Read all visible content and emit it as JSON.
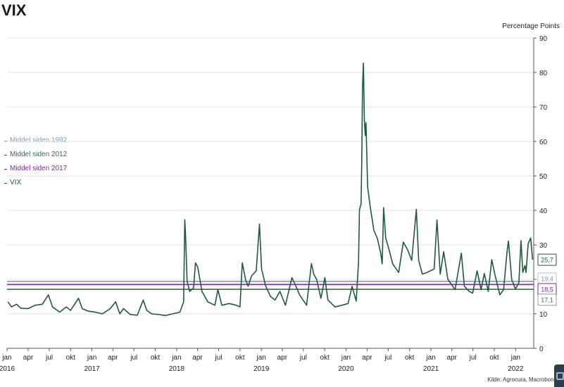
{
  "title": "VIX",
  "units": "Percentage Points",
  "source": "Kilde: Agrocura, Macrobond",
  "colors": {
    "vix": "#1f5a3e",
    "mean_1992": "#7f9bb5",
    "mean_2012": "#3c6b57",
    "mean_2017": "#8a1fa8"
  },
  "chart_data": {
    "type": "line",
    "title": "VIX",
    "ylabel": "Percentage Points",
    "ylim": [
      0,
      90
    ],
    "y_ticks": [
      0,
      10,
      20,
      30,
      40,
      50,
      60,
      70,
      80,
      90
    ],
    "x_range": [
      "2016-01-01",
      "2022-03-20"
    ],
    "month_ticks": [
      {
        "date": "2016-01-01",
        "label": "jan"
      },
      {
        "date": "2016-04-01",
        "label": "apr"
      },
      {
        "date": "2016-07-01",
        "label": "jul"
      },
      {
        "date": "2016-10-01",
        "label": "okt"
      },
      {
        "date": "2017-01-01",
        "label": "jan"
      },
      {
        "date": "2017-04-01",
        "label": "apr"
      },
      {
        "date": "2017-07-01",
        "label": "jul"
      },
      {
        "date": "2017-10-01",
        "label": "okt"
      },
      {
        "date": "2018-01-01",
        "label": "jan"
      },
      {
        "date": "2018-04-01",
        "label": "apr"
      },
      {
        "date": "2018-07-01",
        "label": "jul"
      },
      {
        "date": "2018-10-01",
        "label": "okt"
      },
      {
        "date": "2019-01-01",
        "label": "jan"
      },
      {
        "date": "2019-04-01",
        "label": "apr"
      },
      {
        "date": "2019-07-01",
        "label": "jul"
      },
      {
        "date": "2019-10-01",
        "label": "okt"
      },
      {
        "date": "2020-01-01",
        "label": "jan"
      },
      {
        "date": "2020-04-01",
        "label": "apr"
      },
      {
        "date": "2020-07-01",
        "label": "jul"
      },
      {
        "date": "2020-10-01",
        "label": "okt"
      },
      {
        "date": "2021-01-01",
        "label": "jan"
      },
      {
        "date": "2021-04-01",
        "label": "apr"
      },
      {
        "date": "2021-07-01",
        "label": "jul"
      },
      {
        "date": "2021-10-01",
        "label": "okt"
      },
      {
        "date": "2022-01-01",
        "label": "jan"
      }
    ],
    "year_labels": [
      {
        "date": "2016-01-01",
        "label": "2016"
      },
      {
        "date": "2017-01-01",
        "label": "2017"
      },
      {
        "date": "2018-01-01",
        "label": "2018"
      },
      {
        "date": "2019-01-01",
        "label": "2019"
      },
      {
        "date": "2020-01-01",
        "label": "2020"
      },
      {
        "date": "2021-01-01",
        "label": "2021"
      },
      {
        "date": "2022-01-01",
        "label": "2022"
      }
    ],
    "series": [
      {
        "name": "VIX",
        "values": [
          [
            "2016-01-05",
            13.5
          ],
          [
            "2016-01-20",
            12.0
          ],
          [
            "2016-02-11",
            12.8
          ],
          [
            "2016-03-01",
            11.6
          ],
          [
            "2016-04-01",
            11.5
          ],
          [
            "2016-05-01",
            12.5
          ],
          [
            "2016-06-01",
            12.8
          ],
          [
            "2016-06-27",
            15.5
          ],
          [
            "2016-07-15",
            12.0
          ],
          [
            "2016-08-15",
            10.5
          ],
          [
            "2016-09-12",
            12.0
          ],
          [
            "2016-10-01",
            11.0
          ],
          [
            "2016-11-04",
            14.5
          ],
          [
            "2016-11-20",
            11.5
          ],
          [
            "2016-12-15",
            10.8
          ],
          [
            "2017-01-15",
            10.5
          ],
          [
            "2017-02-15",
            10.0
          ],
          [
            "2017-03-21",
            11.5
          ],
          [
            "2017-04-13",
            13.5
          ],
          [
            "2017-05-01",
            10.0
          ],
          [
            "2017-05-17",
            11.5
          ],
          [
            "2017-06-15",
            9.8
          ],
          [
            "2017-07-15",
            9.6
          ],
          [
            "2017-08-10",
            14.0
          ],
          [
            "2017-08-25",
            11.0
          ],
          [
            "2017-09-15",
            10.0
          ],
          [
            "2017-10-15",
            9.8
          ],
          [
            "2017-11-15",
            9.5
          ],
          [
            "2017-12-15",
            10.0
          ],
          [
            "2018-01-15",
            10.5
          ],
          [
            "2018-01-31",
            13.5
          ],
          [
            "2018-02-05",
            37.3
          ],
          [
            "2018-02-08",
            33.5
          ],
          [
            "2018-02-15",
            19.5
          ],
          [
            "2018-02-26",
            16.5
          ],
          [
            "2018-03-15",
            17.5
          ],
          [
            "2018-03-23",
            24.8
          ],
          [
            "2018-04-02",
            23.5
          ],
          [
            "2018-04-20",
            16.5
          ],
          [
            "2018-05-15",
            13.5
          ],
          [
            "2018-06-15",
            12.5
          ],
          [
            "2018-06-28",
            17.0
          ],
          [
            "2018-07-15",
            12.5
          ],
          [
            "2018-08-15",
            13.0
          ],
          [
            "2018-09-15",
            12.5
          ],
          [
            "2018-10-01",
            12.0
          ],
          [
            "2018-10-11",
            24.8
          ],
          [
            "2018-10-25",
            20.0
          ],
          [
            "2018-11-05",
            18.0
          ],
          [
            "2018-11-20",
            21.0
          ],
          [
            "2018-12-10",
            22.5
          ],
          [
            "2018-12-24",
            36.0
          ],
          [
            "2019-01-02",
            23.0
          ],
          [
            "2019-01-20",
            18.0
          ],
          [
            "2019-02-10",
            15.0
          ],
          [
            "2019-03-01",
            14.0
          ],
          [
            "2019-03-22",
            16.5
          ],
          [
            "2019-04-15",
            12.5
          ],
          [
            "2019-05-13",
            20.5
          ],
          [
            "2019-05-30",
            18.0
          ],
          [
            "2019-06-15",
            15.5
          ],
          [
            "2019-07-15",
            12.5
          ],
          [
            "2019-08-05",
            24.6
          ],
          [
            "2019-08-15",
            21.5
          ],
          [
            "2019-08-27",
            20.0
          ],
          [
            "2019-09-15",
            14.5
          ],
          [
            "2019-10-02",
            20.5
          ],
          [
            "2019-10-15",
            14.0
          ],
          [
            "2019-11-15",
            12.0
          ],
          [
            "2019-12-15",
            12.5
          ],
          [
            "2020-01-10",
            13.0
          ],
          [
            "2020-01-27",
            18.0
          ],
          [
            "2020-02-14",
            13.7
          ],
          [
            "2020-02-24",
            25.0
          ],
          [
            "2020-02-28",
            40.1
          ],
          [
            "2020-03-06",
            41.9
          ],
          [
            "2020-03-09",
            54.5
          ],
          [
            "2020-03-12",
            75.5
          ],
          [
            "2020-03-16",
            82.7
          ],
          [
            "2020-03-20",
            66.0
          ],
          [
            "2020-03-24",
            61.7
          ],
          [
            "2020-03-27",
            65.5
          ],
          [
            "2020-04-03",
            46.8
          ],
          [
            "2020-04-15",
            40.8
          ],
          [
            "2020-04-30",
            34.2
          ],
          [
            "2020-05-15",
            31.9
          ],
          [
            "2020-05-30",
            27.5
          ],
          [
            "2020-06-05",
            24.5
          ],
          [
            "2020-06-11",
            40.8
          ],
          [
            "2020-06-20",
            32.0
          ],
          [
            "2020-07-05",
            28.5
          ],
          [
            "2020-07-20",
            24.5
          ],
          [
            "2020-08-15",
            22.0
          ],
          [
            "2020-09-04",
            30.8
          ],
          [
            "2020-09-23",
            28.5
          ],
          [
            "2020-10-10",
            25.5
          ],
          [
            "2020-10-30",
            40.3
          ],
          [
            "2020-11-09",
            25.5
          ],
          [
            "2020-11-25",
            21.5
          ],
          [
            "2020-12-15",
            22.0
          ],
          [
            "2021-01-15",
            23.0
          ],
          [
            "2021-01-27",
            37.2
          ],
          [
            "2021-02-10",
            21.5
          ],
          [
            "2021-02-25",
            28.0
          ],
          [
            "2021-03-15",
            20.0
          ],
          [
            "2021-04-15",
            17.0
          ],
          [
            "2021-05-12",
            27.6
          ],
          [
            "2021-05-25",
            18.0
          ],
          [
            "2021-06-15",
            16.5
          ],
          [
            "2021-06-30",
            16.0
          ],
          [
            "2021-07-19",
            22.5
          ],
          [
            "2021-08-05",
            17.0
          ],
          [
            "2021-08-19",
            21.7
          ],
          [
            "2021-09-05",
            16.5
          ],
          [
            "2021-09-20",
            25.7
          ],
          [
            "2021-10-05",
            21.0
          ],
          [
            "2021-10-25",
            15.5
          ],
          [
            "2021-11-10",
            17.0
          ],
          [
            "2021-11-26",
            28.6
          ],
          [
            "2021-12-01",
            31.1
          ],
          [
            "2021-12-15",
            20.0
          ],
          [
            "2021-12-31",
            17.2
          ],
          [
            "2022-01-15",
            19.0
          ],
          [
            "2022-01-24",
            31.2
          ],
          [
            "2022-02-01",
            22.0
          ],
          [
            "2022-02-10",
            24.0
          ],
          [
            "2022-02-15",
            22.0
          ],
          [
            "2022-02-24",
            30.3
          ],
          [
            "2022-03-07",
            32.0
          ],
          [
            "2022-03-15",
            25.7
          ]
        ]
      },
      {
        "name": "Middel siden 1992",
        "value": 19.4
      },
      {
        "name": "Middel siden 2012",
        "value": 17.1
      },
      {
        "name": "Middel siden 2017",
        "value": 18.5
      }
    ],
    "end_labels": {
      "vix": "25,7",
      "mean_1992": "19,4",
      "mean_2017": "18,5",
      "mean_2012": "17,1"
    },
    "grid": true,
    "legend_position": "left"
  }
}
